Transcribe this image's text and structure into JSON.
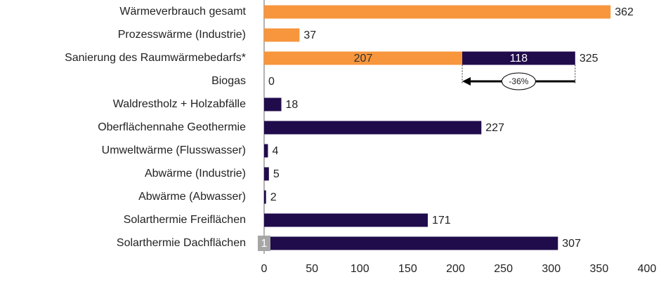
{
  "chart_data": {
    "type": "hbar_stacked",
    "categories": [
      "Wärmeverbrauch gesamt",
      "Prozesswärme (Industrie)",
      "Sanierung des Raumwärmebedarfs*",
      "Biogas",
      "Waldrestholz + Holzabfälle",
      "Oberflächennahe Geothermie",
      "Umweltwärme (Flusswasser)",
      "Abwärme (Industrie)",
      "Abwärme (Abwasser)",
      "Solarthermie Freiflächen",
      "Solarthermie Dachflächen"
    ],
    "series": [
      {
        "color": "#f7963c",
        "values": [
          362,
          37,
          207,
          null,
          null,
          null,
          null,
          null,
          null,
          null,
          null
        ]
      },
      {
        "color": "#200b4b",
        "values": [
          null,
          null,
          118,
          0,
          18,
          227,
          4,
          5,
          2,
          171,
          307
        ]
      }
    ],
    "totals": [
      null,
      null,
      325,
      null,
      null,
      null,
      null,
      null,
      null,
      null,
      null
    ],
    "annotation": "-36%",
    "page_number": "1",
    "xlim": [
      0,
      400
    ],
    "xticks": [
      0,
      50,
      100,
      150,
      200,
      250,
      300,
      350,
      400
    ]
  }
}
